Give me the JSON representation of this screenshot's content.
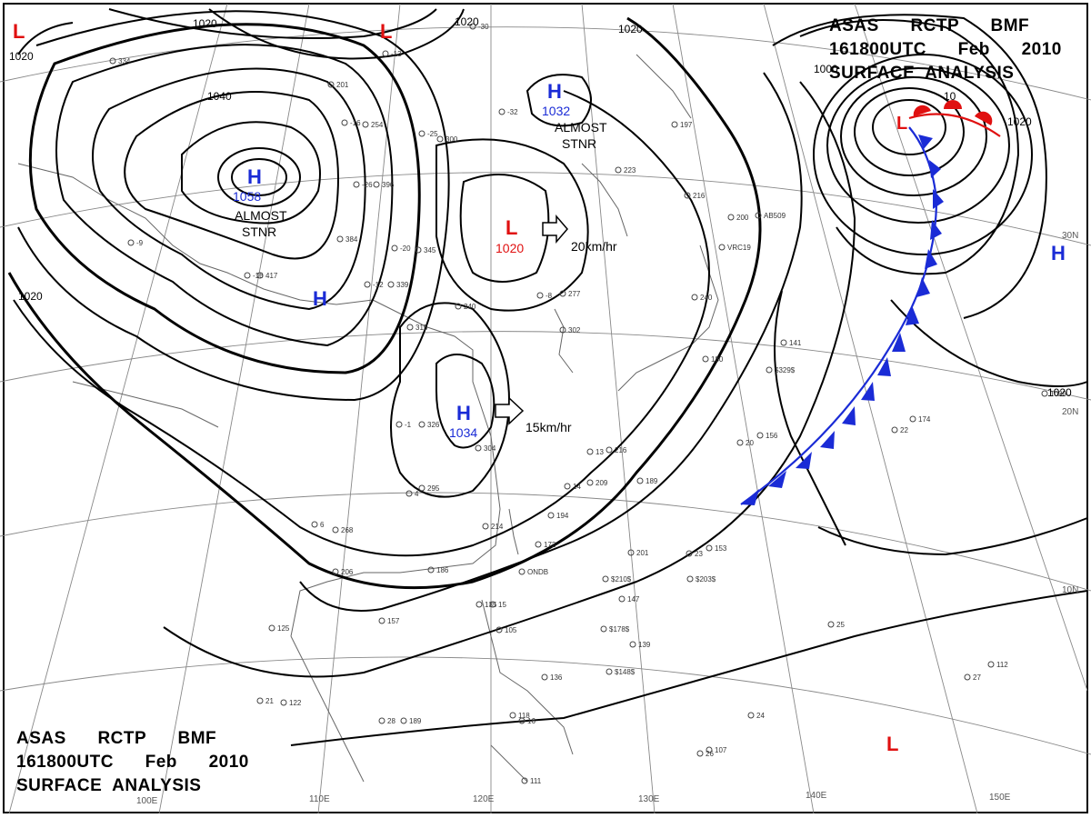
{
  "title": {
    "line1": "ASAS      RCTP      BMF",
    "line2": "161800UTC      Feb      2010",
    "line3": "SURFACE  ANALYSIS"
  },
  "colors": {
    "high": "#1a2bd6",
    "low": "#e01010",
    "cold_front": "#1a2bd6",
    "warm_front": "#e01010",
    "isobar": "#000000",
    "grid": "#777777"
  },
  "pressure_centers": [
    {
      "type": "H",
      "value": "1058",
      "note": "ALMOST STNR"
    },
    {
      "type": "H",
      "value": "1032",
      "note": "ALMOST STNR"
    },
    {
      "type": "H",
      "value": "1034",
      "note": ""
    },
    {
      "type": "H",
      "value": "",
      "note": ""
    },
    {
      "type": "H",
      "value": "",
      "note": ""
    },
    {
      "type": "L",
      "value": "1020",
      "note": ""
    },
    {
      "type": "L",
      "value": "",
      "note": ""
    },
    {
      "type": "L",
      "value": "",
      "note": ""
    },
    {
      "type": "L",
      "value": "",
      "note": ""
    },
    {
      "type": "L",
      "value": "",
      "note": ""
    }
  ],
  "motions": [
    {
      "speed": "20km/hr"
    },
    {
      "speed": "15km/hr"
    }
  ],
  "isobar_labels": [
    "1020",
    "1020",
    "1020",
    "1040",
    "1020",
    "1020",
    "1000",
    "10",
    "1020",
    "1020"
  ],
  "lon_labels": [
    "110E",
    "120E",
    "130E",
    "140E",
    "150E",
    "100E"
  ],
  "lat_labels": [
    "30N",
    "20N",
    "10N"
  ],
  "station_text": [
    "-13",
    "-16",
    "-26",
    "-25",
    "-20",
    "-16",
    "-12",
    "-9",
    "-8",
    "334",
    "201",
    "254",
    "300",
    "396",
    "384",
    "345",
    "417",
    "339",
    "240",
    "315",
    "277",
    "302",
    "295",
    "326",
    "304",
    "268",
    "214",
    "206",
    "186",
    "194",
    "172",
    "209",
    "216",
    "189",
    "201",
    "153",
    "156",
    "174",
    "141",
    "180",
    "240",
    "216",
    "200",
    "147",
    "139",
    "135",
    "105",
    "157",
    "125",
    "122",
    "189",
    "118",
    "111",
    "136",
    "112",
    "107",
    "197",
    "223",
    "ONDB",
    "VRC19",
    "AB509",
    "$329$",
    "$203$",
    "$210$",
    "$178$",
    "$148$",
    "1020",
    "22",
    "25",
    "27",
    "26",
    "24",
    "23",
    "21",
    "28",
    "14",
    "13",
    "15",
    "16",
    "20",
    "6",
    "4",
    "-1",
    "-30",
    "-32"
  ]
}
